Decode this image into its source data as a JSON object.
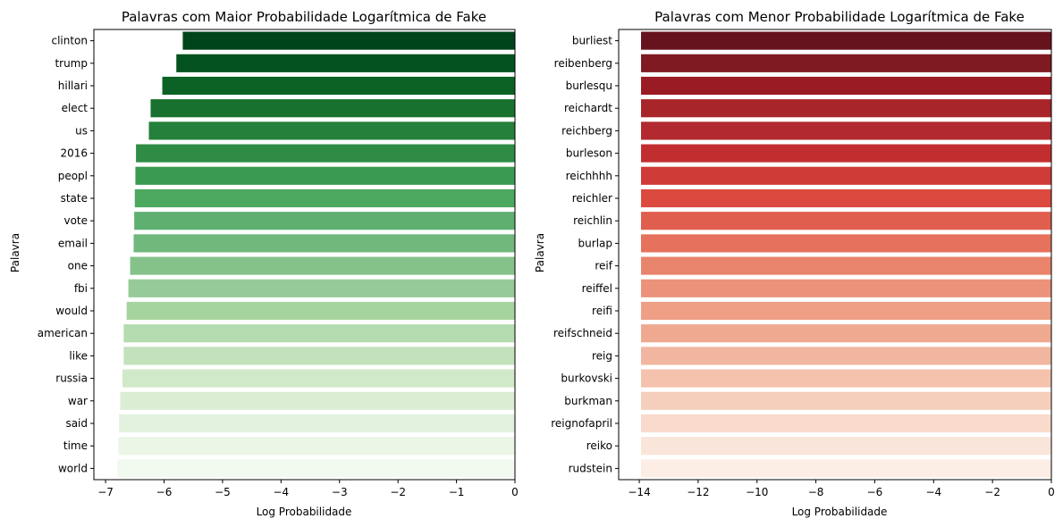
{
  "chart_data": [
    {
      "type": "bar",
      "orientation": "horizontal",
      "title": "Palavras com Maior Probabilidade Logarítmica de Fake",
      "xlabel": "Log Probabilidade",
      "ylabel": "Palavra",
      "xlim": [
        -7.2,
        0
      ],
      "xticks": [
        -7,
        -6,
        -5,
        -4,
        -3,
        -2,
        -1,
        0
      ],
      "xtick_labels": [
        "−7",
        "−6",
        "−5",
        "−4",
        "−3",
        "−2",
        "−1",
        "0"
      ],
      "grid": false,
      "palette": "Greens",
      "categories": [
        "clinton",
        "trump",
        "hillari",
        "elect",
        "us",
        "2016",
        "peopl",
        "state",
        "vote",
        "email",
        "one",
        "fbi",
        "would",
        "american",
        "like",
        "russia",
        "war",
        "said",
        "time",
        "world"
      ],
      "values": [
        -5.68,
        -5.79,
        -6.03,
        -6.23,
        -6.26,
        -6.48,
        -6.49,
        -6.5,
        -6.51,
        -6.52,
        -6.58,
        -6.61,
        -6.64,
        -6.69,
        -6.69,
        -6.71,
        -6.75,
        -6.77,
        -6.78,
        -6.8
      ],
      "colors": [
        "#00441b",
        "#04521f",
        "#0b6224",
        "#18712e",
        "#24803a",
        "#2f8c44",
        "#3b9a52",
        "#4ba85e",
        "#5fb070",
        "#71b87c",
        "#84c28a",
        "#96ca98",
        "#a6d49f",
        "#b5dbb0",
        "#c3e2bb",
        "#d0e9c8",
        "#dbeed3",
        "#e3f2de",
        "#ebf6e7",
        "#f2f9ef"
      ]
    },
    {
      "type": "bar",
      "orientation": "horizontal",
      "title": "Palavras com Menor Probabilidade Logarítmica de Fake",
      "xlabel": "Log Probabilidade",
      "ylabel": "Palavra",
      "xlim": [
        -14.7,
        0
      ],
      "xticks": [
        -14,
        -12,
        -10,
        -8,
        -6,
        -4,
        -2,
        0
      ],
      "xtick_labels": [
        "−14",
        "−12",
        "−10",
        "−8",
        "−6",
        "−4",
        "−2",
        "0"
      ],
      "grid": false,
      "palette": "Reds",
      "categories": [
        "burliest",
        "reibenberg",
        "burlesqu",
        "reichardt",
        "reichberg",
        "burleson",
        "reichhhh",
        "reichler",
        "reichlin",
        "burlap",
        "reif",
        "reiffel",
        "reifi",
        "reifschneid",
        "reig",
        "burkovski",
        "burkman",
        "reignofapril",
        "reiko",
        "rudstein"
      ],
      "values": [
        -13.94,
        -13.94,
        -13.94,
        -13.94,
        -13.94,
        -13.94,
        -13.94,
        -13.94,
        -13.94,
        -13.94,
        -13.94,
        -13.94,
        -13.94,
        -13.94,
        -13.94,
        -13.94,
        -13.94,
        -13.94,
        -13.94,
        -13.94
      ],
      "colors": [
        "#67131d",
        "#7f1a22",
        "#9b1b24",
        "#a82529",
        "#b2292f",
        "#c22e30",
        "#cf3b37",
        "#dc4a3f",
        "#e05e4e",
        "#e6725d",
        "#e9846c",
        "#ec927b",
        "#ee9f86",
        "#efa991",
        "#f1b6a0",
        "#f4c2ad",
        "#f6cebc",
        "#f9dacc",
        "#fae5da",
        "#fcede5"
      ]
    }
  ]
}
